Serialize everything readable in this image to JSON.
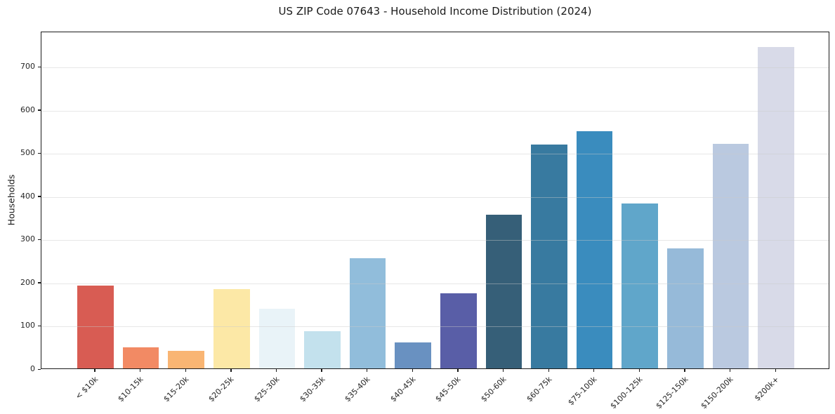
{
  "chart_data": {
    "type": "bar",
    "title": "US ZIP Code 07643 - Household Income Distribution (2024)",
    "xlabel": "",
    "ylabel": "Households",
    "categories": [
      "< $10k",
      "$10-15k",
      "$15-20k",
      "$20-25k",
      "$25-30k",
      "$30-35k",
      "$35-40k",
      "$40-45k",
      "$45-50k",
      "$50-60k",
      "$60-75k",
      "$75-100k",
      "$100-125k",
      "$125-150k",
      "$150-200k",
      "$200k+"
    ],
    "values": [
      192,
      48,
      40,
      184,
      139,
      87,
      255,
      60,
      174,
      356,
      518,
      549,
      382,
      278,
      521,
      745
    ],
    "bar_colors": [
      "#d85c53",
      "#f28a64",
      "#f9b573",
      "#fce8a6",
      "#e9f3f8",
      "#c3e1ed",
      "#91bddb",
      "#6991c1",
      "#595ea7",
      "#365f78",
      "#387aa0",
      "#3a8cbe",
      "#60a6ca",
      "#96bad9",
      "#bac9e0",
      "#d8dae8"
    ],
    "ylim": [
      0,
      782
    ],
    "yticks": [
      0,
      100,
      200,
      300,
      400,
      500,
      600,
      700
    ],
    "grid": "horizontal-only",
    "legend_position": "none",
    "x_tick_rotation_deg": 45
  },
  "style_colors": {
    "axis_spine": "#1c1c1c",
    "grid_line": "#c9c9c9",
    "text": "#262626",
    "background": "#ffffff"
  }
}
